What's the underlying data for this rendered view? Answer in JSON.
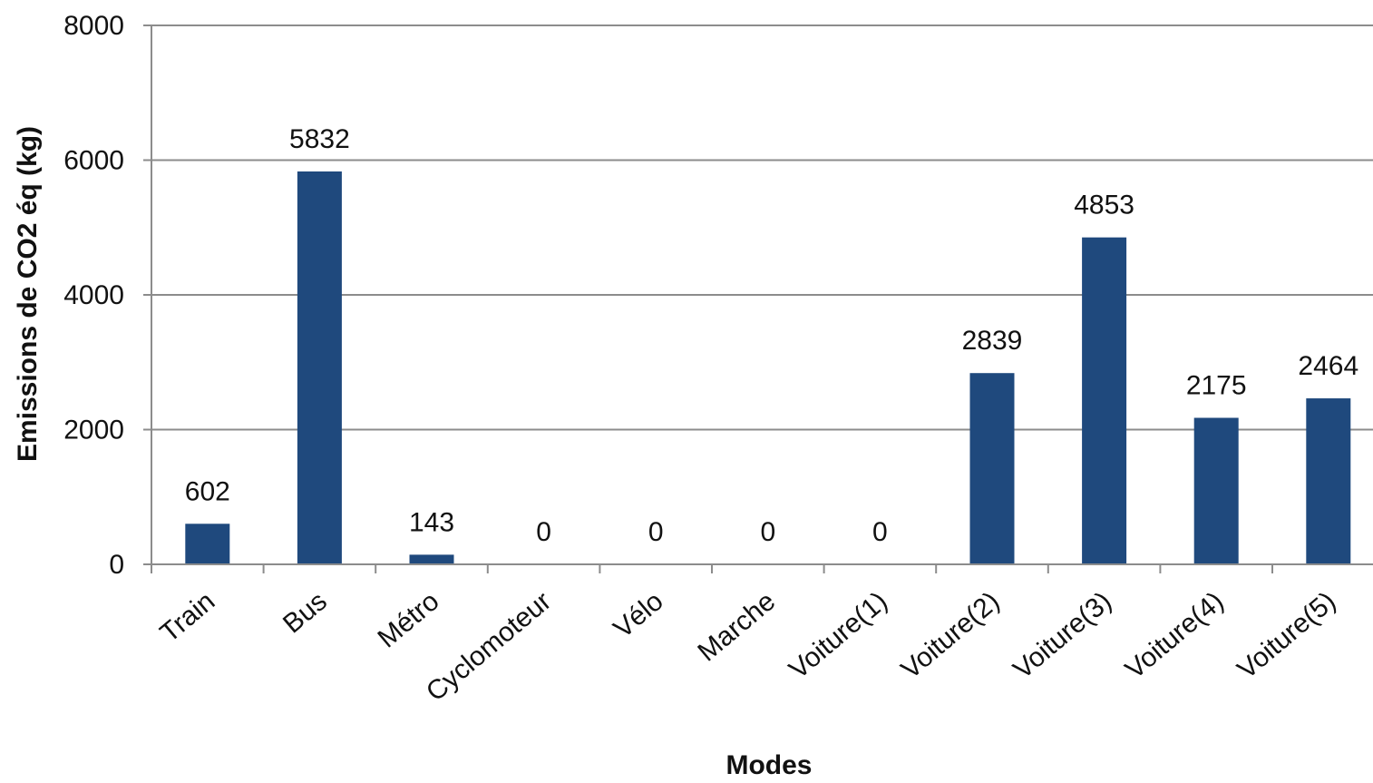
{
  "chart_data": {
    "type": "bar",
    "title": "",
    "xlabel": "Modes",
    "ylabel": "Emissions de CO2 éq  (kg)",
    "categories": [
      "Train",
      "Bus",
      "Métro",
      "Cyclomoteur",
      "Vélo",
      "Marche",
      "Voiture(1)",
      "Voiture(2)",
      "Voiture(3)",
      "Voiture(4)",
      "Voiture(5)"
    ],
    "values": [
      602,
      5832,
      143,
      0,
      0,
      0,
      0,
      2839,
      4853,
      2175,
      2464
    ],
    "data_labels": [
      "602",
      "5832",
      "143",
      "0",
      "0",
      "0",
      "0",
      "2839",
      "4853",
      "2175",
      "2464"
    ],
    "ylim": [
      0,
      8000
    ],
    "yticks": [
      0,
      2000,
      4000,
      6000,
      8000
    ],
    "ytick_labels": [
      "0",
      "2000",
      "4000",
      "6000",
      "8000"
    ],
    "grid": true,
    "legend": "none",
    "colors": {
      "bar": "#1f497d",
      "grid": "#8c8c8c",
      "axis": "#8c8c8c"
    }
  }
}
